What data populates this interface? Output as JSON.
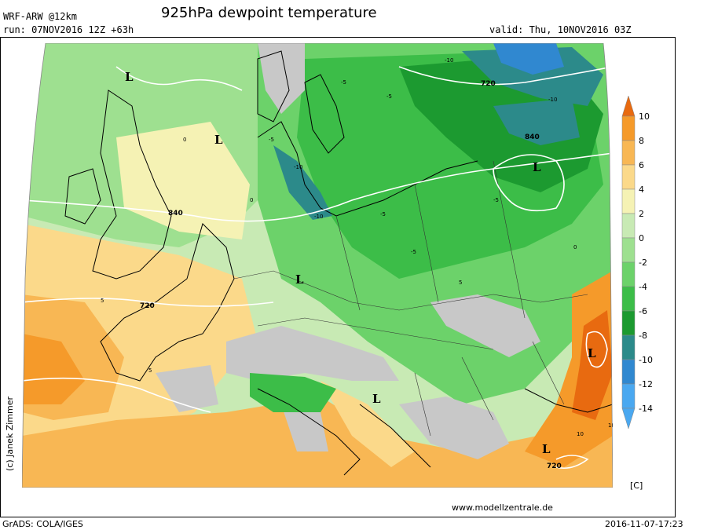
{
  "header": {
    "model": "WRF-ARW @12km",
    "run": "run: 07NOV2016 12Z +63h",
    "title": "925hPa dewpoint temperature",
    "valid": "valid: Thu, 10NOV2016 03Z"
  },
  "footer": {
    "copyright": "(c) Janek Zimmer",
    "website": "www.modellzentrale.de",
    "grads": "GrADS: COLA/IGES",
    "timestamp": "2016-11-07-17:23",
    "unit": "[C]"
  },
  "colorbar": {
    "labels": [
      "10",
      "8",
      "6",
      "4",
      "2",
      "0",
      "-2",
      "-4",
      "-6",
      "-8",
      "-10",
      "-12",
      "-14"
    ],
    "colors": [
      "#e86a10",
      "#f59a2a",
      "#f8b754",
      "#fbd98a",
      "#f5f2b4",
      "#c8eab4",
      "#9ee090",
      "#6cd26a",
      "#3cbd48",
      "#1c9a30",
      "#2c8a8a",
      "#3088d0",
      "#4aa8f0"
    ]
  },
  "map_labels": {
    "pressure_lows": [
      "L",
      "L",
      "L",
      "L",
      "L",
      "L"
    ],
    "height_contours": [
      "840",
      "720",
      "720",
      "840",
      "720"
    ],
    "dewpoint_contours": [
      "-5",
      "-10",
      "-10",
      "-5",
      "-10",
      "-5",
      "-5",
      "-5",
      "-5",
      "0",
      "0",
      "5",
      "5",
      "5",
      "10",
      "10",
      "-10",
      "0"
    ]
  }
}
